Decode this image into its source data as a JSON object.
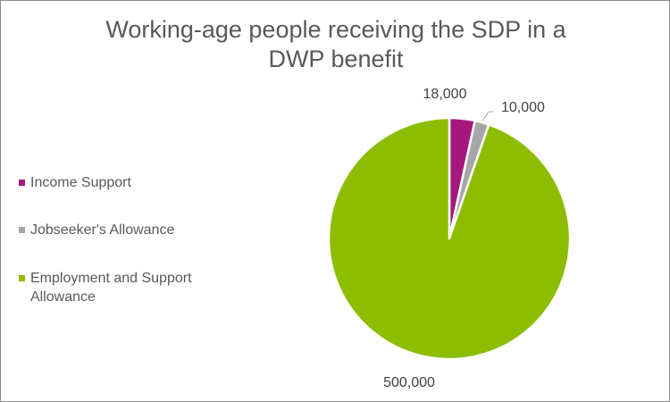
{
  "chart_data": {
    "type": "pie",
    "title": "Working-age people receiving the SDP in a DWP benefit",
    "title_lines": [
      "Working-age people receiving the SDP in a",
      "DWP benefit"
    ],
    "categories": [
      "Income Support",
      "Jobseeker's Allowance",
      "Employment and Support Allowance"
    ],
    "values": [
      18000,
      10000,
      500000
    ],
    "data_labels": [
      "18,000",
      "10,000",
      "500,000"
    ],
    "colors": [
      "#a5197c",
      "#a6a6a6",
      "#8cbd00"
    ],
    "legend_position": "left",
    "legend": [
      {
        "label_lines": [
          "Income Support"
        ],
        "color": "#a5197c"
      },
      {
        "label_lines": [
          "Jobseeker's Allowance"
        ],
        "color": "#a6a6a6"
      },
      {
        "label_lines": [
          "Employment and Support",
          "Allowance"
        ],
        "color": "#8cbd00"
      }
    ]
  }
}
